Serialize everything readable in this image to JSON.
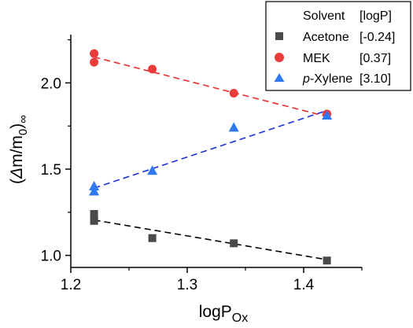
{
  "chart_data": {
    "type": "scatter",
    "xlabel": "logP",
    "xlabel_sub": "Ox",
    "ylabel_pre": "(",
    "ylabel_delta": "Δ",
    "ylabel_mid": "m/m",
    "ylabel_sub0": "0",
    "ylabel_close": ")",
    "ylabel_inf": "∞",
    "xlim": [
      1.2,
      1.45
    ],
    "ylim": [
      0.93,
      2.28
    ],
    "xticks": [
      1.2,
      1.3,
      1.4
    ],
    "xtick_labels": [
      "1.2",
      "1.3",
      "1.4"
    ],
    "yticks": [
      1.0,
      1.5,
      2.0
    ],
    "ytick_labels": [
      "1.0",
      "1.5",
      "2.0"
    ],
    "grid": false,
    "legend": {
      "position": "top-right",
      "header_solvent": "Solvent",
      "header_logp": "[logP]"
    },
    "series": [
      {
        "name": "Acetone",
        "legend_logp": "[-0.24]",
        "marker": "square",
        "color": "#4a4a4a",
        "fit_color": "#000000",
        "points": [
          [
            1.22,
            1.24
          ],
          [
            1.22,
            1.2
          ],
          [
            1.27,
            1.1
          ],
          [
            1.34,
            1.07
          ],
          [
            1.42,
            0.97
          ]
        ],
        "fit": [
          [
            1.22,
            1.205
          ],
          [
            1.42,
            0.975
          ]
        ]
      },
      {
        "name": "MEK",
        "legend_logp": "[0.37]",
        "marker": "circle",
        "color": "#ec3b3b",
        "fit_color": "#ec2b2b",
        "points": [
          [
            1.22,
            2.17
          ],
          [
            1.22,
            2.12
          ],
          [
            1.27,
            2.08
          ],
          [
            1.34,
            1.94
          ],
          [
            1.42,
            1.82
          ]
        ],
        "fit": [
          [
            1.22,
            2.15
          ],
          [
            1.42,
            1.805
          ]
        ]
      },
      {
        "name_italic": "p",
        "name_rest": "-Xylene",
        "legend_logp": "[3.10]",
        "marker": "triangle",
        "color": "#2f78f0",
        "fit_color": "#1f2fd8",
        "points": [
          [
            1.22,
            1.4
          ],
          [
            1.22,
            1.37
          ],
          [
            1.27,
            1.49
          ],
          [
            1.34,
            1.74
          ],
          [
            1.42,
            1.81
          ]
        ],
        "fit": [
          [
            1.22,
            1.39
          ],
          [
            1.42,
            1.84
          ]
        ]
      }
    ]
  }
}
